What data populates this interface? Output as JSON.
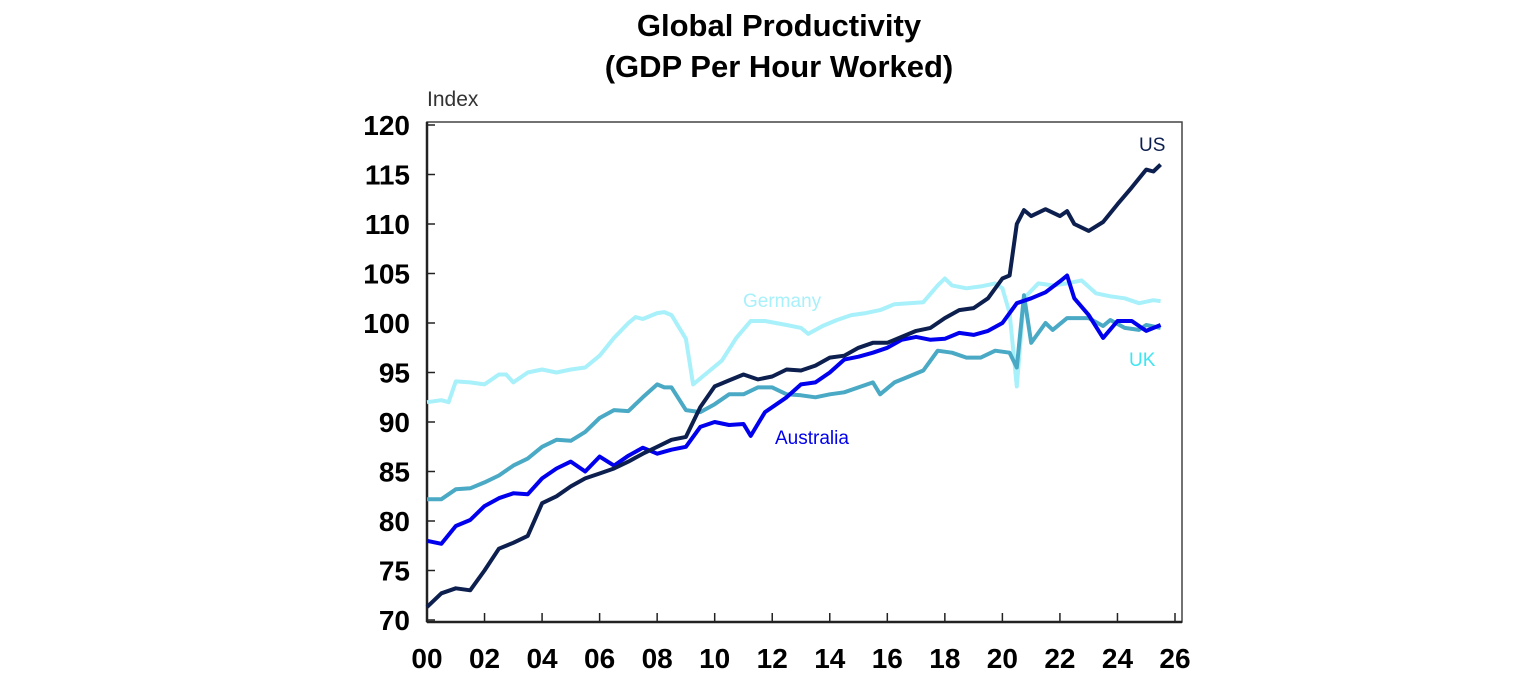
{
  "chart_data": {
    "type": "line",
    "title": "Global Productivity",
    "subtitle": "(GDP Per Hour Worked)",
    "ylabel": "Index",
    "xlabel": "",
    "ylim": [
      70,
      120
    ],
    "xlim": [
      2000,
      2026
    ],
    "yticks": [
      "70",
      "75",
      "80",
      "85",
      "90",
      "95",
      "100",
      "105",
      "110",
      "115",
      "120"
    ],
    "xticks": [
      "00",
      "02",
      "04",
      "06",
      "08",
      "10",
      "12",
      "14",
      "16",
      "18",
      "20",
      "22",
      "24",
      "26"
    ],
    "grid": false,
    "series": [
      {
        "name": "US",
        "color": "#0c1f4e",
        "x": [
          2000,
          2000.5,
          2001,
          2001.5,
          2002,
          2002.5,
          2003,
          2003.5,
          2004,
          2004.5,
          2005,
          2005.5,
          2006,
          2006.5,
          2007,
          2007.5,
          2008,
          2008.5,
          2009,
          2009.5,
          2010,
          2010.5,
          2011,
          2011.5,
          2012,
          2012.5,
          2013,
          2013.5,
          2014,
          2014.5,
          2015,
          2015.5,
          2016,
          2016.5,
          2017,
          2017.5,
          2018,
          2018.5,
          2019,
          2019.5,
          2020,
          2020.25,
          2020.5,
          2020.75,
          2021,
          2021.5,
          2022,
          2022.25,
          2022.5,
          2023,
          2023.5,
          2024,
          2024.5,
          2025,
          2025.25,
          2025.5
        ],
        "y": [
          71.3,
          72.7,
          73.2,
          73.0,
          75.0,
          77.2,
          77.8,
          78.5,
          81.8,
          82.5,
          83.5,
          84.3,
          84.8,
          85.3,
          86.0,
          86.8,
          87.5,
          88.2,
          88.5,
          91.5,
          93.6,
          94.2,
          94.8,
          94.3,
          94.6,
          95.3,
          95.2,
          95.7,
          96.5,
          96.7,
          97.5,
          98.0,
          98.0,
          98.6,
          99.2,
          99.5,
          100.5,
          101.3,
          101.5,
          102.5,
          104.5,
          104.8,
          110.0,
          111.4,
          110.8,
          111.5,
          110.8,
          111.3,
          110.0,
          109.3,
          110.2,
          112.0,
          113.7,
          115.5,
          115.3,
          116.0
        ]
      },
      {
        "name": "Australia",
        "color": "#0000ee",
        "x": [
          2000,
          2000.5,
          2001,
          2001.5,
          2002,
          2002.5,
          2003,
          2003.5,
          2004,
          2004.5,
          2005,
          2005.5,
          2006,
          2006.5,
          2007,
          2007.5,
          2008,
          2008.5,
          2009,
          2009.5,
          2010,
          2010.5,
          2011,
          2011.25,
          2011.75,
          2012.5,
          2013,
          2013.5,
          2014,
          2014.5,
          2015,
          2015.5,
          2016,
          2016.5,
          2017,
          2017.5,
          2018,
          2018.5,
          2019,
          2019.5,
          2020,
          2020.5,
          2021,
          2021.5,
          2022,
          2022.25,
          2022.5,
          2023,
          2023.5,
          2024,
          2024.5,
          2025,
          2025.5
        ],
        "y": [
          78.0,
          77.7,
          79.5,
          80.1,
          81.5,
          82.3,
          82.8,
          82.7,
          84.3,
          85.3,
          86.0,
          85.0,
          86.5,
          85.6,
          86.6,
          87.4,
          86.8,
          87.2,
          87.5,
          89.5,
          90.0,
          89.7,
          89.8,
          88.6,
          91.0,
          92.5,
          93.8,
          94.0,
          95.0,
          96.3,
          96.6,
          97.0,
          97.5,
          98.3,
          98.6,
          98.3,
          98.4,
          99.0,
          98.8,
          99.2,
          100.0,
          102.0,
          102.5,
          103.1,
          104.2,
          104.8,
          102.5,
          100.8,
          98.5,
          100.2,
          100.2,
          99.2,
          99.8
        ]
      },
      {
        "name": "UK",
        "color": "#4aa9c4",
        "label_color": "#3fe6f2",
        "x": [
          2000,
          2000.5,
          2001,
          2001.5,
          2002,
          2002.5,
          2003,
          2003.5,
          2004,
          2004.5,
          2005,
          2005.5,
          2006,
          2006.5,
          2007,
          2007.5,
          2008,
          2008.25,
          2008.5,
          2009,
          2009.5,
          2010,
          2010.5,
          2011,
          2011.5,
          2012,
          2012.5,
          2013,
          2013.5,
          2014,
          2014.5,
          2015,
          2015.5,
          2015.75,
          2016.25,
          2016.75,
          2017.25,
          2017.75,
          2018.25,
          2018.75,
          2019.25,
          2019.75,
          2020.25,
          2020.5,
          2020.75,
          2021,
          2021.5,
          2021.75,
          2022.25,
          2023,
          2023.5,
          2023.75,
          2024.25,
          2024.75,
          2025,
          2025.5
        ],
        "y": [
          82.2,
          82.2,
          83.2,
          83.3,
          83.9,
          84.6,
          85.6,
          86.3,
          87.5,
          88.2,
          88.1,
          89.0,
          90.4,
          91.2,
          91.1,
          92.5,
          93.8,
          93.5,
          93.5,
          91.2,
          91.0,
          91.8,
          92.8,
          92.8,
          93.5,
          93.5,
          92.8,
          92.7,
          92.5,
          92.8,
          93.0,
          93.5,
          94.0,
          92.8,
          94.0,
          94.6,
          95.2,
          97.2,
          97.0,
          96.5,
          96.5,
          97.2,
          97.0,
          95.5,
          102.8,
          98.0,
          100.0,
          99.3,
          100.5,
          100.5,
          99.7,
          100.3,
          99.5,
          99.3,
          99.8,
          99.5
        ]
      },
      {
        "name": "Germany",
        "color": "#a8f0fa",
        "x": [
          2000,
          2000.5,
          2000.75,
          2001,
          2001.5,
          2002,
          2002.5,
          2002.75,
          2003,
          2003.5,
          2004,
          2004.5,
          2005,
          2005.5,
          2006,
          2006.5,
          2007,
          2007.25,
          2007.5,
          2008,
          2008.25,
          2008.5,
          2009,
          2009.25,
          2009.75,
          2010.25,
          2010.75,
          2011.25,
          2011.75,
          2012.5,
          2013,
          2013.25,
          2013.75,
          2014.25,
          2014.75,
          2015.25,
          2015.75,
          2016.25,
          2016.75,
          2017.25,
          2017.75,
          2018,
          2018.25,
          2018.75,
          2019.25,
          2019.75,
          2020,
          2020.25,
          2020.5,
          2020.75,
          2021.25,
          2021.75,
          2022.25,
          2022.75,
          2023.25,
          2023.75,
          2024.25,
          2024.75,
          2025.25,
          2025.5
        ],
        "y": [
          92.0,
          92.2,
          92.0,
          94.1,
          94.0,
          93.8,
          94.8,
          94.8,
          94.0,
          95.0,
          95.3,
          95.0,
          95.3,
          95.5,
          96.7,
          98.5,
          100.0,
          100.6,
          100.4,
          101.0,
          101.1,
          100.8,
          98.4,
          93.8,
          95.0,
          96.2,
          98.5,
          100.2,
          100.2,
          99.8,
          99.5,
          98.9,
          99.7,
          100.3,
          100.8,
          101.0,
          101.3,
          101.9,
          102.0,
          102.1,
          103.8,
          104.5,
          103.8,
          103.5,
          103.7,
          104.0,
          103.5,
          101.0,
          93.6,
          102.5,
          104.0,
          103.8,
          104.0,
          104.3,
          103.0,
          102.7,
          102.5,
          102.0,
          102.3,
          102.2
        ]
      }
    ]
  }
}
